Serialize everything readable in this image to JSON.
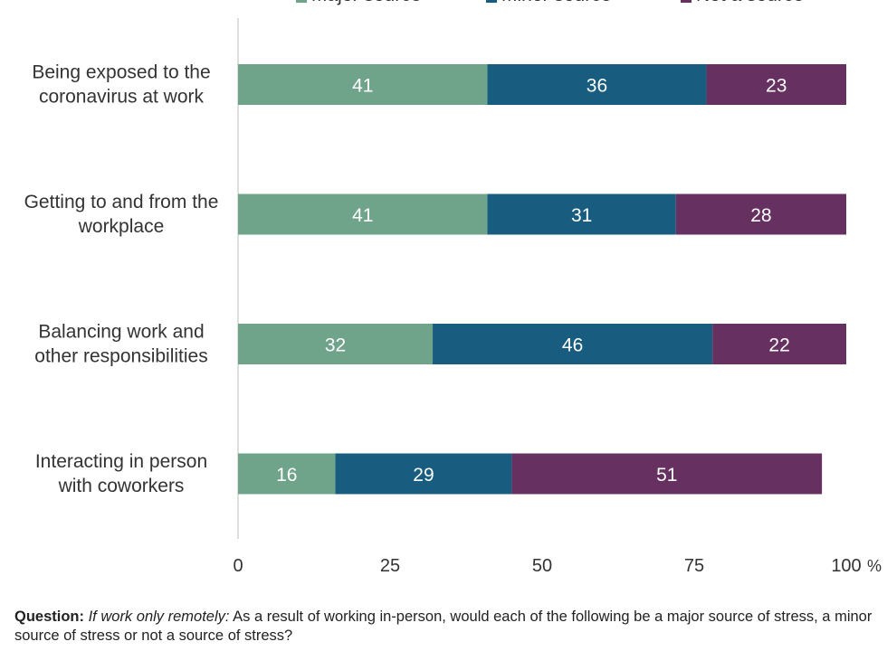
{
  "chart_data": {
    "type": "bar",
    "orientation": "horizontal",
    "stacked": true,
    "categories": [
      [
        "Being exposed to the",
        "coronavirus at work"
      ],
      [
        "Getting to and from the",
        "workplace"
      ],
      [
        "Balancing work and",
        "other responsibilities"
      ],
      [
        "Interacting in person",
        "with coworkers"
      ]
    ],
    "series": [
      {
        "name": "Major source",
        "color": "#6fa48a",
        "values": [
          41,
          41,
          32,
          16
        ]
      },
      {
        "name": "Minor source",
        "color": "#185d7f",
        "values": [
          36,
          31,
          46,
          29
        ]
      },
      {
        "name": "Not a source",
        "color": "#663060",
        "values": [
          23,
          28,
          22,
          51
        ]
      }
    ],
    "xlim": [
      0,
      100
    ],
    "xticks": [
      "0",
      "25",
      "50",
      "75",
      "100"
    ],
    "xunit": "%",
    "legend_position": "top",
    "grid": false
  },
  "footnote": {
    "lead": "Question:",
    "italic": "If work only remotely:",
    "rest": " As a result of working in-person, would each of the following be a major source of stress, a minor source of stress or not a source of stress?"
  }
}
